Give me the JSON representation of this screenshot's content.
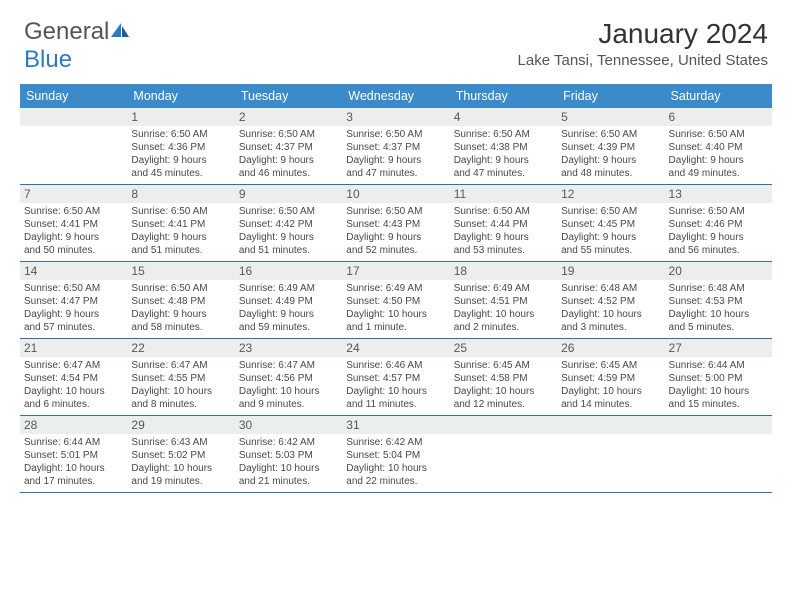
{
  "logo": {
    "text_general": "General",
    "text_blue": "Blue"
  },
  "title": "January 2024",
  "location": "Lake Tansi, Tennessee, United States",
  "header_bg": "#3b8bca",
  "divider_color": "#2f6ea6",
  "daynum_bg": "#eceeee",
  "weekdays": [
    "Sunday",
    "Monday",
    "Tuesday",
    "Wednesday",
    "Thursday",
    "Friday",
    "Saturday"
  ],
  "weeks": [
    [
      null,
      {
        "n": "1",
        "sr": "Sunrise: 6:50 AM",
        "ss": "Sunset: 4:36 PM",
        "d1": "Daylight: 9 hours",
        "d2": "and 45 minutes."
      },
      {
        "n": "2",
        "sr": "Sunrise: 6:50 AM",
        "ss": "Sunset: 4:37 PM",
        "d1": "Daylight: 9 hours",
        "d2": "and 46 minutes."
      },
      {
        "n": "3",
        "sr": "Sunrise: 6:50 AM",
        "ss": "Sunset: 4:37 PM",
        "d1": "Daylight: 9 hours",
        "d2": "and 47 minutes."
      },
      {
        "n": "4",
        "sr": "Sunrise: 6:50 AM",
        "ss": "Sunset: 4:38 PM",
        "d1": "Daylight: 9 hours",
        "d2": "and 47 minutes."
      },
      {
        "n": "5",
        "sr": "Sunrise: 6:50 AM",
        "ss": "Sunset: 4:39 PM",
        "d1": "Daylight: 9 hours",
        "d2": "and 48 minutes."
      },
      {
        "n": "6",
        "sr": "Sunrise: 6:50 AM",
        "ss": "Sunset: 4:40 PM",
        "d1": "Daylight: 9 hours",
        "d2": "and 49 minutes."
      }
    ],
    [
      {
        "n": "7",
        "sr": "Sunrise: 6:50 AM",
        "ss": "Sunset: 4:41 PM",
        "d1": "Daylight: 9 hours",
        "d2": "and 50 minutes."
      },
      {
        "n": "8",
        "sr": "Sunrise: 6:50 AM",
        "ss": "Sunset: 4:41 PM",
        "d1": "Daylight: 9 hours",
        "d2": "and 51 minutes."
      },
      {
        "n": "9",
        "sr": "Sunrise: 6:50 AM",
        "ss": "Sunset: 4:42 PM",
        "d1": "Daylight: 9 hours",
        "d2": "and 51 minutes."
      },
      {
        "n": "10",
        "sr": "Sunrise: 6:50 AM",
        "ss": "Sunset: 4:43 PM",
        "d1": "Daylight: 9 hours",
        "d2": "and 52 minutes."
      },
      {
        "n": "11",
        "sr": "Sunrise: 6:50 AM",
        "ss": "Sunset: 4:44 PM",
        "d1": "Daylight: 9 hours",
        "d2": "and 53 minutes."
      },
      {
        "n": "12",
        "sr": "Sunrise: 6:50 AM",
        "ss": "Sunset: 4:45 PM",
        "d1": "Daylight: 9 hours",
        "d2": "and 55 minutes."
      },
      {
        "n": "13",
        "sr": "Sunrise: 6:50 AM",
        "ss": "Sunset: 4:46 PM",
        "d1": "Daylight: 9 hours",
        "d2": "and 56 minutes."
      }
    ],
    [
      {
        "n": "14",
        "sr": "Sunrise: 6:50 AM",
        "ss": "Sunset: 4:47 PM",
        "d1": "Daylight: 9 hours",
        "d2": "and 57 minutes."
      },
      {
        "n": "15",
        "sr": "Sunrise: 6:50 AM",
        "ss": "Sunset: 4:48 PM",
        "d1": "Daylight: 9 hours",
        "d2": "and 58 minutes."
      },
      {
        "n": "16",
        "sr": "Sunrise: 6:49 AM",
        "ss": "Sunset: 4:49 PM",
        "d1": "Daylight: 9 hours",
        "d2": "and 59 minutes."
      },
      {
        "n": "17",
        "sr": "Sunrise: 6:49 AM",
        "ss": "Sunset: 4:50 PM",
        "d1": "Daylight: 10 hours",
        "d2": "and 1 minute."
      },
      {
        "n": "18",
        "sr": "Sunrise: 6:49 AM",
        "ss": "Sunset: 4:51 PM",
        "d1": "Daylight: 10 hours",
        "d2": "and 2 minutes."
      },
      {
        "n": "19",
        "sr": "Sunrise: 6:48 AM",
        "ss": "Sunset: 4:52 PM",
        "d1": "Daylight: 10 hours",
        "d2": "and 3 minutes."
      },
      {
        "n": "20",
        "sr": "Sunrise: 6:48 AM",
        "ss": "Sunset: 4:53 PM",
        "d1": "Daylight: 10 hours",
        "d2": "and 5 minutes."
      }
    ],
    [
      {
        "n": "21",
        "sr": "Sunrise: 6:47 AM",
        "ss": "Sunset: 4:54 PM",
        "d1": "Daylight: 10 hours",
        "d2": "and 6 minutes."
      },
      {
        "n": "22",
        "sr": "Sunrise: 6:47 AM",
        "ss": "Sunset: 4:55 PM",
        "d1": "Daylight: 10 hours",
        "d2": "and 8 minutes."
      },
      {
        "n": "23",
        "sr": "Sunrise: 6:47 AM",
        "ss": "Sunset: 4:56 PM",
        "d1": "Daylight: 10 hours",
        "d2": "and 9 minutes."
      },
      {
        "n": "24",
        "sr": "Sunrise: 6:46 AM",
        "ss": "Sunset: 4:57 PM",
        "d1": "Daylight: 10 hours",
        "d2": "and 11 minutes."
      },
      {
        "n": "25",
        "sr": "Sunrise: 6:45 AM",
        "ss": "Sunset: 4:58 PM",
        "d1": "Daylight: 10 hours",
        "d2": "and 12 minutes."
      },
      {
        "n": "26",
        "sr": "Sunrise: 6:45 AM",
        "ss": "Sunset: 4:59 PM",
        "d1": "Daylight: 10 hours",
        "d2": "and 14 minutes."
      },
      {
        "n": "27",
        "sr": "Sunrise: 6:44 AM",
        "ss": "Sunset: 5:00 PM",
        "d1": "Daylight: 10 hours",
        "d2": "and 15 minutes."
      }
    ],
    [
      {
        "n": "28",
        "sr": "Sunrise: 6:44 AM",
        "ss": "Sunset: 5:01 PM",
        "d1": "Daylight: 10 hours",
        "d2": "and 17 minutes."
      },
      {
        "n": "29",
        "sr": "Sunrise: 6:43 AM",
        "ss": "Sunset: 5:02 PM",
        "d1": "Daylight: 10 hours",
        "d2": "and 19 minutes."
      },
      {
        "n": "30",
        "sr": "Sunrise: 6:42 AM",
        "ss": "Sunset: 5:03 PM",
        "d1": "Daylight: 10 hours",
        "d2": "and 21 minutes."
      },
      {
        "n": "31",
        "sr": "Sunrise: 6:42 AM",
        "ss": "Sunset: 5:04 PM",
        "d1": "Daylight: 10 hours",
        "d2": "and 22 minutes."
      },
      null,
      null,
      null
    ]
  ]
}
